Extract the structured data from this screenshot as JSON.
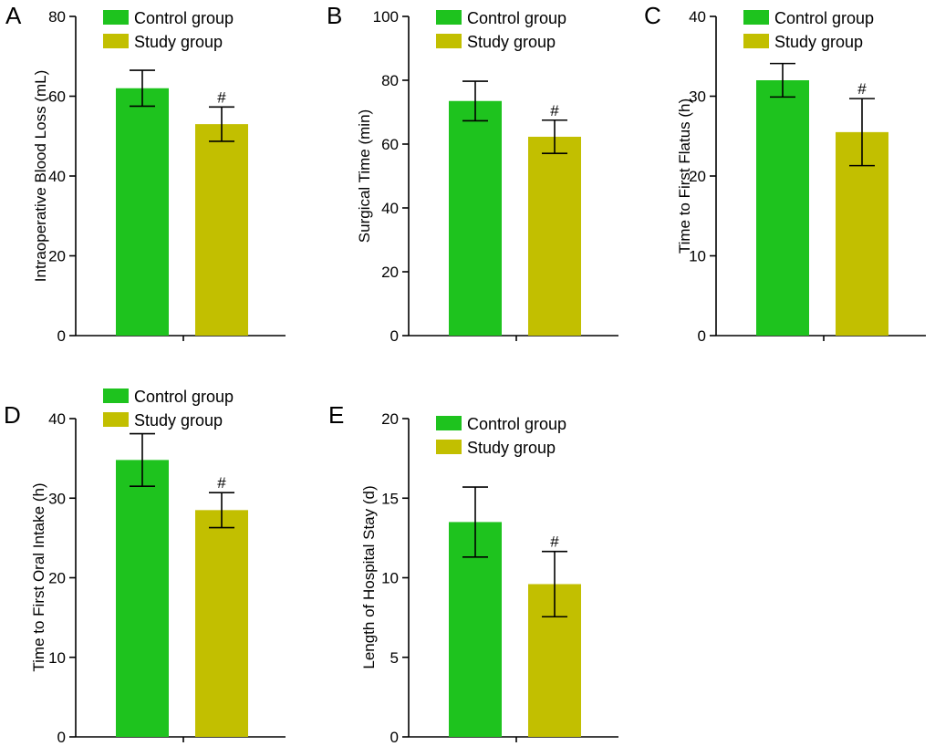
{
  "figure": {
    "legend_labels": [
      "Control group",
      "Study group"
    ],
    "colors": {
      "control": "#1ec31e",
      "study": "#c2bf00",
      "axis": "#000000"
    }
  },
  "chart_data": [
    {
      "panel": "A",
      "type": "bar",
      "ylabel": "Intraoperative Blood Loss (mL)",
      "ylim": [
        0,
        80
      ],
      "yticks": [
        0,
        20,
        40,
        60,
        80
      ],
      "categories": [
        "Control group",
        "Study group"
      ],
      "values": [
        62,
        53
      ],
      "errors": [
        4.5,
        4.3
      ],
      "annotations": [
        "",
        "#"
      ]
    },
    {
      "panel": "B",
      "type": "bar",
      "ylabel": "Surgical Time (min)",
      "ylim": [
        0,
        100
      ],
      "yticks": [
        0,
        20,
        40,
        60,
        80,
        100
      ],
      "categories": [
        "Control group",
        "Study group"
      ],
      "values": [
        73.5,
        62.3
      ],
      "errors": [
        6.2,
        5.2
      ],
      "annotations": [
        "",
        "#"
      ]
    },
    {
      "panel": "C",
      "type": "bar",
      "ylabel": "Time to First Flatus (h)",
      "ylim": [
        0,
        40
      ],
      "yticks": [
        0,
        10,
        20,
        30,
        40
      ],
      "categories": [
        "Control group",
        "Study group"
      ],
      "values": [
        32,
        25.5
      ],
      "errors": [
        2.1,
        4.2
      ],
      "annotations": [
        "",
        "#"
      ]
    },
    {
      "panel": "D",
      "type": "bar",
      "ylabel": "Time to First Oral Intake (h)",
      "ylim": [
        0,
        40
      ],
      "yticks": [
        0,
        10,
        20,
        30,
        40
      ],
      "categories": [
        "Control group",
        "Study group"
      ],
      "values": [
        34.8,
        28.5
      ],
      "errors": [
        3.3,
        2.2
      ],
      "annotations": [
        "",
        "#"
      ]
    },
    {
      "panel": "E",
      "type": "bar",
      "ylabel": "Length of Hospital Stay (d)",
      "ylim": [
        0,
        20
      ],
      "yticks": [
        0,
        5,
        10,
        15,
        20
      ],
      "categories": [
        "Control group",
        "Study group"
      ],
      "values": [
        13.5,
        9.6
      ],
      "errors": [
        2.2,
        2.05
      ],
      "annotations": [
        "",
        "#"
      ]
    }
  ]
}
